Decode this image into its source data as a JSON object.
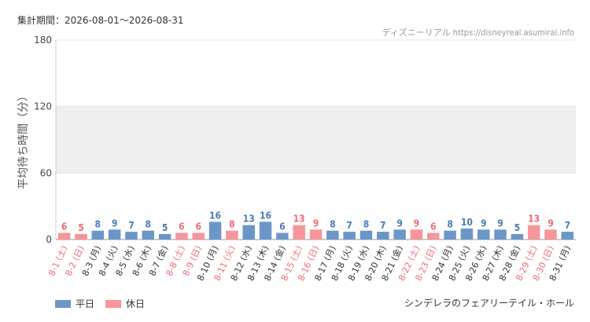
{
  "header": {
    "period": "集計期間：2026-08-01～2026-08-31",
    "source": "ディズニーリアル https://disneyreal.asumirai.info"
  },
  "footer": {
    "attraction": "シンデレラのフェアリーテイル・ホール"
  },
  "colors": {
    "weekday": "#6b97c8",
    "holiday": "#f6959a",
    "band": "#efefef",
    "grid": "#e3e3e3"
  },
  "chart_data": {
    "type": "bar",
    "ylabel": "平均待ち時間（分）",
    "ylim": [
      0,
      180
    ],
    "yticks": [
      0,
      60,
      120,
      180
    ],
    "grid": true,
    "legend_position": "bottom-left",
    "legend": [
      {
        "key": "weekday",
        "label": "平日"
      },
      {
        "key": "holiday",
        "label": "休日"
      }
    ],
    "categories": [
      "8-1 (土)",
      "8-2 (日)",
      "8-3 (月)",
      "8-4 (火)",
      "8-5 (水)",
      "8-6 (木)",
      "8-7 (金)",
      "8-8 (土)",
      "8-9 (日)",
      "8-10 (月)",
      "8-11 (火)",
      "8-12 (水)",
      "8-13 (木)",
      "8-14 (金)",
      "8-15 (土)",
      "8-16 (日)",
      "8-17 (月)",
      "8-18 (火)",
      "8-19 (水)",
      "8-20 (木)",
      "8-21 (金)",
      "8-22 (土)",
      "8-23 (日)",
      "8-24 (月)",
      "8-25 (火)",
      "8-26 (水)",
      "8-27 (木)",
      "8-28 (金)",
      "8-29 (土)",
      "8-30 (日)",
      "8-31 (月)"
    ],
    "values": [
      6,
      5,
      8,
      9,
      7,
      8,
      5,
      6,
      6,
      16,
      8,
      13,
      16,
      6,
      13,
      9,
      8,
      7,
      8,
      7,
      9,
      9,
      6,
      8,
      10,
      9,
      9,
      5,
      13,
      9,
      7
    ],
    "day_type": [
      "holiday",
      "holiday",
      "weekday",
      "weekday",
      "weekday",
      "weekday",
      "weekday",
      "holiday",
      "holiday",
      "weekday",
      "holiday",
      "weekday",
      "weekday",
      "weekday",
      "holiday",
      "holiday",
      "weekday",
      "weekday",
      "weekday",
      "weekday",
      "weekday",
      "holiday",
      "holiday",
      "weekday",
      "weekday",
      "weekday",
      "weekday",
      "weekday",
      "holiday",
      "holiday",
      "weekday"
    ]
  }
}
